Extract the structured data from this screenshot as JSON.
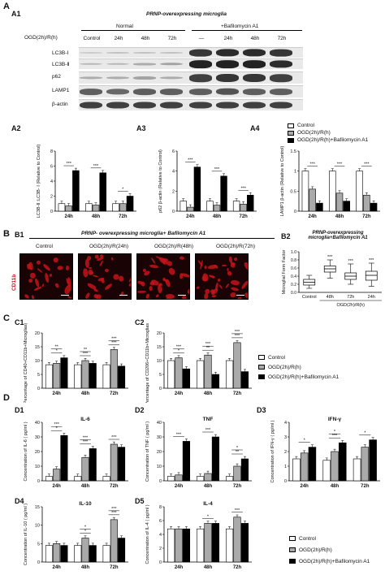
{
  "panelA": {
    "label": "A",
    "a1": "A1",
    "title": "PRNP-overexpressing microglia",
    "group_normal": "Normal",
    "group_baf": "+Bafilomycin A1",
    "row_header": "OGD(2h)/R(h)",
    "lanes": [
      "Control",
      "24h",
      "48h",
      "72h",
      "—",
      "24h",
      "48h",
      "72h"
    ],
    "rows": [
      "LC3B-Ⅰ",
      "LC3B-Ⅱ",
      "p62",
      "LAMP1",
      "β-actin"
    ],
    "a2": "A2",
    "a3": "A3",
    "a4": "A4",
    "legend": [
      "Control",
      "OGD(2h)/R(h)",
      "OGD(2h)/R(h)+Bafilomycin A1"
    ]
  },
  "panelB": {
    "label": "B",
    "b1": "B1",
    "title": "PRNP- overexpressing microglia+ Bafilomycin A1",
    "conditions": [
      "Control",
      "OGD(2h)/R(24h)",
      "OGD(2h)/R(48h)",
      "OGD(2h)/R(72h)"
    ],
    "stain": "CD11b",
    "b2": "B2",
    "b2_title": "PRNP-overexpressing microglia+Bafilomycin A1"
  },
  "panelC": {
    "label": "C",
    "c1": "C1",
    "c2": "C2",
    "legend": [
      "Control",
      "OGD(2h)/R(h)",
      "OGD(2h)/R(h)+Bafilomycin A1"
    ]
  },
  "panelD": {
    "label": "D",
    "d1": "D1",
    "d2": "D2",
    "d3": "D3",
    "d4": "D4",
    "d5": "D5",
    "legend": [
      "Control",
      "OGD(2h)/R(h)",
      "OGD(2h)/R(h)+Bafilomycin A1"
    ]
  },
  "colors": {
    "control": "#ffffff",
    "ogd": "#aaaaaa",
    "baf": "#000000"
  },
  "chart_data": [
    {
      "id": "A2",
      "type": "bar",
      "ylabel": "LC3B-Ⅱ :LC3B- Ⅰ (Relative to Control)",
      "ylim": [
        0,
        8
      ],
      "yticks": [
        0,
        2,
        4,
        6,
        8
      ],
      "categories": [
        "24h",
        "48h",
        "72h"
      ],
      "series": [
        {
          "values": [
            1.0,
            1.0,
            1.0
          ]
        },
        {
          "values": [
            0.7,
            0.8,
            1.0
          ]
        },
        {
          "values": [
            5.4,
            5.1,
            2.0
          ]
        }
      ],
      "sig": [
        [
          "***",
          0
        ],
        [
          "***",
          1
        ],
        [
          "*",
          2
        ]
      ]
    },
    {
      "id": "A3",
      "type": "bar",
      "ylabel": "p62 β-actin (Relative to Control)",
      "ylim": [
        0,
        6
      ],
      "yticks": [
        0,
        2,
        4,
        6
      ],
      "categories": [
        "24h",
        "48h",
        "72h"
      ],
      "series": [
        {
          "values": [
            1.0,
            1.0,
            1.0
          ]
        },
        {
          "values": [
            0.4,
            0.6,
            0.7
          ]
        },
        {
          "values": [
            4.4,
            3.5,
            1.6
          ]
        }
      ],
      "sig": [
        [
          "***",
          0
        ],
        [
          "***",
          1
        ],
        [
          "***",
          2
        ]
      ]
    },
    {
      "id": "A4",
      "type": "bar",
      "ylabel": "LAMP1 β-actin (Relative to Control)",
      "ylim": [
        0,
        1.5
      ],
      "yticks": [
        0.0,
        0.5,
        1.0,
        1.5
      ],
      "categories": [
        "24h",
        "48h",
        "72h"
      ],
      "series": [
        {
          "values": [
            1.0,
            1.0,
            1.0
          ]
        },
        {
          "values": [
            0.55,
            0.45,
            0.4
          ]
        },
        {
          "values": [
            0.2,
            0.25,
            0.2
          ]
        }
      ],
      "sig": [
        [
          "***",
          0
        ],
        [
          "***",
          1
        ],
        [
          "***",
          2
        ]
      ]
    },
    {
      "id": "B2",
      "type": "box",
      "ylabel": "Microglial Form Factor",
      "xlabel": "OGD(2h)/R(h)",
      "ylim": [
        0,
        1.0
      ],
      "yticks": [
        0.0,
        0.2,
        0.4,
        0.6,
        0.8,
        1.0
      ],
      "categories": [
        "Control",
        "48h",
        "72h",
        "24h"
      ],
      "boxes": [
        [
          0.1,
          0.18,
          0.25,
          0.32,
          0.42
        ],
        [
          0.35,
          0.5,
          0.58,
          0.65,
          0.8
        ],
        [
          0.2,
          0.32,
          0.4,
          0.48,
          0.7
        ],
        [
          0.15,
          0.3,
          0.42,
          0.52,
          0.72
        ]
      ],
      "sig": [
        [
          "***",
          1
        ],
        [
          "***",
          2
        ],
        [
          "***",
          3
        ]
      ]
    },
    {
      "id": "C1",
      "type": "bar",
      "ylabel": "Percentage of CD40+CD11b+Microglias(%)",
      "ylim": [
        0,
        20
      ],
      "yticks": [
        0,
        5,
        10,
        15,
        20
      ],
      "categories": [
        "24h",
        "48h",
        "72h"
      ],
      "series": [
        {
          "values": [
            8.5,
            8.5,
            8.5
          ]
        },
        {
          "values": [
            9.0,
            10.0,
            14.0
          ]
        },
        {
          "values": [
            11.0,
            9.0,
            8.0
          ]
        }
      ],
      "sig": [
        [
          "*",
          0
        ],
        [
          "**",
          0
        ],
        [
          "***",
          1
        ],
        [
          "**",
          1
        ],
        [
          "***",
          2
        ],
        [
          "***",
          2
        ]
      ]
    },
    {
      "id": "C2",
      "type": "bar",
      "ylabel": "Percentage of CD206+CD11b+Microglias(%)",
      "ylim": [
        0,
        20
      ],
      "yticks": [
        0,
        5,
        10,
        15,
        20
      ],
      "categories": [
        "24h",
        "48h",
        "72h"
      ],
      "series": [
        {
          "values": [
            10,
            10,
            10
          ]
        },
        {
          "values": [
            11,
            12,
            16.5
          ]
        },
        {
          "values": [
            7,
            5,
            6
          ]
        }
      ],
      "sig": [
        [
          "*",
          0
        ],
        [
          "***",
          0
        ],
        [
          "**",
          1
        ],
        [
          "***",
          1
        ],
        [
          "***",
          2
        ],
        [
          "***",
          2
        ]
      ]
    },
    {
      "id": "D1",
      "type": "bar",
      "title": "IL-6",
      "ylabel": "Concentration of IL-6 ( pg/ml )",
      "ylim": [
        0,
        40
      ],
      "yticks": [
        0,
        10,
        20,
        30,
        40
      ],
      "categories": [
        "24h",
        "48h",
        "72h"
      ],
      "series": [
        {
          "values": [
            3,
            3,
            3
          ]
        },
        {
          "values": [
            8,
            16,
            25
          ]
        },
        {
          "values": [
            31,
            22,
            23
          ]
        }
      ],
      "sig": [
        [
          "*",
          0
        ],
        [
          "***",
          0
        ],
        [
          "***",
          1
        ],
        [
          "***",
          1
        ],
        [
          "***",
          2
        ]
      ]
    },
    {
      "id": "D2",
      "type": "bar",
      "title": "TNF",
      "ylabel": "Concentration of TNF ( pg/ml )",
      "ylim": [
        0,
        40
      ],
      "yticks": [
        0,
        10,
        20,
        30,
        40
      ],
      "categories": [
        "24h",
        "48h",
        "72h"
      ],
      "series": [
        {
          "values": [
            3,
            3,
            3
          ]
        },
        {
          "values": [
            4,
            5,
            10
          ]
        },
        {
          "values": [
            27,
            30,
            15
          ]
        }
      ],
      "sig": [
        [
          "***",
          0
        ],
        [
          "***",
          1
        ],
        [
          "**",
          2
        ],
        [
          "*",
          2
        ]
      ]
    },
    {
      "id": "D3",
      "type": "bar",
      "title": "IFN-γ",
      "ylabel": "Concentration of IFN-γ ( pg/ml )",
      "ylim": [
        0,
        4
      ],
      "yticks": [
        0,
        1,
        2,
        3,
        4
      ],
      "categories": [
        "24h",
        "48h",
        "72h"
      ],
      "series": [
        {
          "values": [
            1.5,
            1.4,
            1.5
          ]
        },
        {
          "values": [
            1.9,
            2.0,
            2.3
          ]
        },
        {
          "values": [
            2.3,
            2.6,
            2.8
          ]
        }
      ],
      "sig": [
        [
          "*",
          0
        ],
        [
          "***",
          1
        ],
        [
          "*",
          1
        ],
        [
          "*",
          2
        ]
      ]
    },
    {
      "id": "D4",
      "type": "bar",
      "title": "IL-10",
      "ylabel": "Concentration of IL-10 ( pg/ml )",
      "ylim": [
        0,
        15
      ],
      "yticks": [
        0,
        5,
        10,
        15
      ],
      "categories": [
        "24h",
        "48h",
        "72h"
      ],
      "series": [
        {
          "values": [
            4.5,
            4.5,
            4.5
          ]
        },
        {
          "values": [
            5.0,
            6.5,
            11.5
          ]
        },
        {
          "values": [
            4.5,
            4.5,
            6.5
          ]
        }
      ],
      "sig": [
        [
          "*",
          1
        ],
        [
          "*",
          1
        ],
        [
          "***",
          2
        ],
        [
          "***",
          2
        ]
      ]
    },
    {
      "id": "D5",
      "type": "bar",
      "title": "IL-4",
      "ylabel": "Concentration of IL-4 ( pg/ml )",
      "ylim": [
        0,
        8
      ],
      "yticks": [
        0,
        2,
        4,
        6,
        8
      ],
      "categories": [
        "24h",
        "48h",
        "72h"
      ],
      "series": [
        {
          "values": [
            4.8,
            4.8,
            4.8
          ]
        },
        {
          "values": [
            4.8,
            5.6,
            6.5
          ]
        },
        {
          "values": [
            4.8,
            5.6,
            5.6
          ]
        }
      ],
      "sig": [
        [
          "*",
          1
        ],
        [
          "***",
          2
        ]
      ]
    }
  ]
}
